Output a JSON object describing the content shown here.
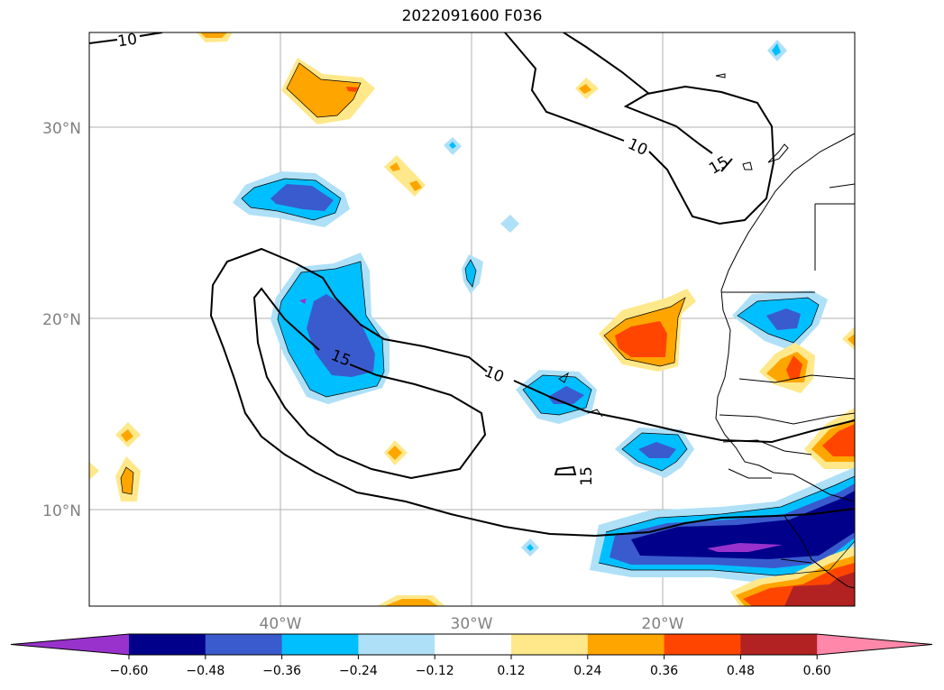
{
  "title": "2022091600 F036",
  "map": {
    "lat_ticks": [
      "30°N",
      "20°N",
      "10°N"
    ],
    "lon_ticks": [
      "40°W",
      "30°W",
      "20°W"
    ],
    "contour_labels": [
      "10",
      "15",
      "10",
      "15",
      "10",
      "15"
    ]
  },
  "colorbar": {
    "levels": [
      "−0.60",
      "−0.48",
      "−0.36",
      "−0.24",
      "−0.12",
      "0.12",
      "0.24",
      "0.36",
      "0.48",
      "0.60"
    ],
    "colors": [
      "#9932cc",
      "#00008b",
      "#3a5bcd",
      "#00bfff",
      "#aee0f8",
      "#ffffff",
      "#ffe88a",
      "#ffa500",
      "#ff4500",
      "#b22222",
      "#ff88aa"
    ]
  }
}
